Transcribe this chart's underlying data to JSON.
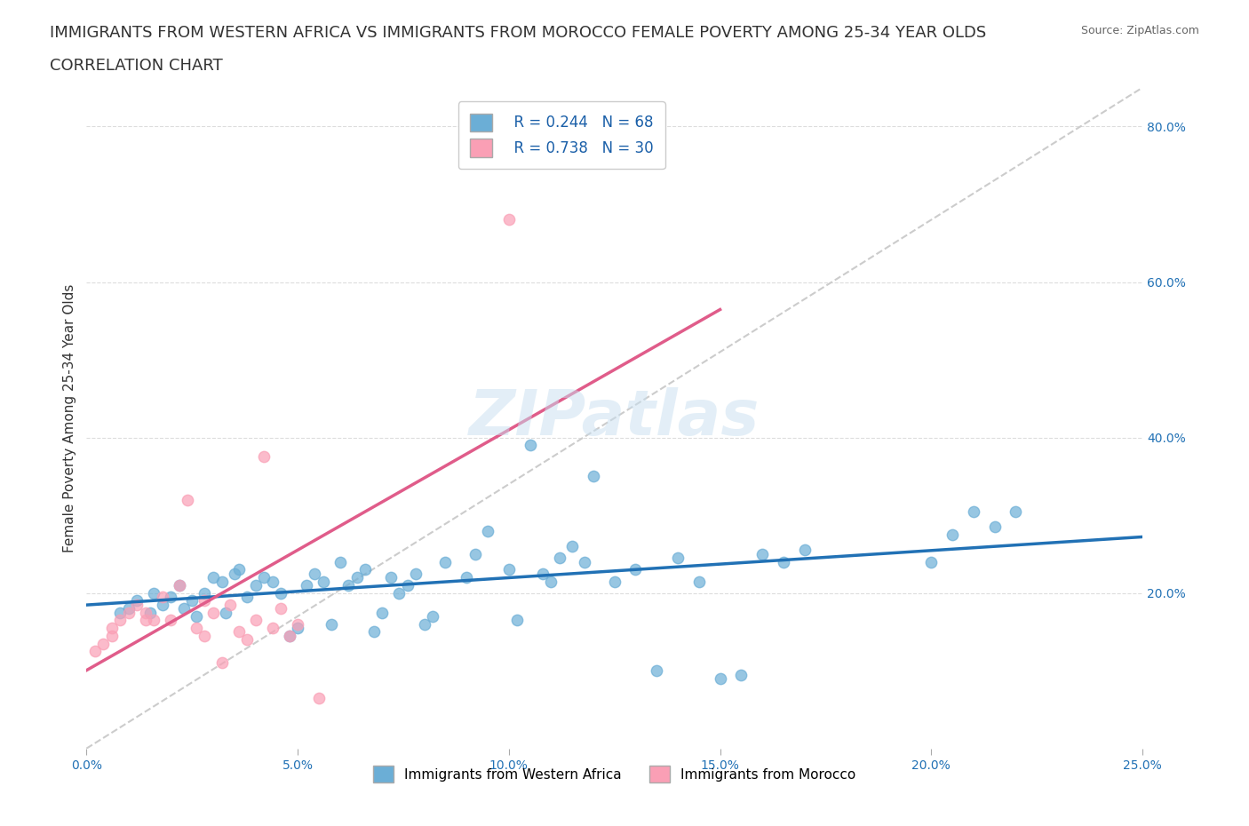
{
  "title_line1": "IMMIGRANTS FROM WESTERN AFRICA VS IMMIGRANTS FROM MOROCCO FEMALE POVERTY AMONG 25-34 YEAR OLDS",
  "title_line2": "CORRELATION CHART",
  "source_text": "Source: ZipAtlas.com",
  "xlabel": "",
  "ylabel": "Female Poverty Among 25-34 Year Olds",
  "xlim": [
    0.0,
    0.25
  ],
  "ylim": [
    0.0,
    0.85
  ],
  "xtick_labels": [
    "0.0%",
    "5.0%",
    "10.0%",
    "15.0%",
    "20.0%",
    "25.0%"
  ],
  "xtick_values": [
    0.0,
    0.05,
    0.1,
    0.15,
    0.2,
    0.25
  ],
  "ytick_labels": [
    "20.0%",
    "40.0%",
    "60.0%",
    "80.0%"
  ],
  "ytick_values": [
    0.2,
    0.4,
    0.6,
    0.8
  ],
  "blue_color": "#6baed6",
  "pink_color": "#fa9fb5",
  "blue_line_color": "#2171b5",
  "pink_line_color": "#e05c8a",
  "diagonal_color": "#cccccc",
  "watermark": "ZIPatlas",
  "legend_r1": "R = 0.244",
  "legend_n1": "N = 68",
  "legend_r2": "R = 0.738",
  "legend_n2": "N = 30",
  "legend_label1": "Immigrants from Western Africa",
  "legend_label2": "Immigrants from Morocco",
  "title_fontsize": 13,
  "axis_label_fontsize": 11,
  "tick_fontsize": 10,
  "blue_scatter": [
    [
      0.008,
      0.175
    ],
    [
      0.01,
      0.18
    ],
    [
      0.012,
      0.19
    ],
    [
      0.015,
      0.175
    ],
    [
      0.016,
      0.2
    ],
    [
      0.018,
      0.185
    ],
    [
      0.02,
      0.195
    ],
    [
      0.022,
      0.21
    ],
    [
      0.023,
      0.18
    ],
    [
      0.025,
      0.19
    ],
    [
      0.026,
      0.17
    ],
    [
      0.028,
      0.2
    ],
    [
      0.03,
      0.22
    ],
    [
      0.032,
      0.215
    ],
    [
      0.033,
      0.175
    ],
    [
      0.035,
      0.225
    ],
    [
      0.036,
      0.23
    ],
    [
      0.038,
      0.195
    ],
    [
      0.04,
      0.21
    ],
    [
      0.042,
      0.22
    ],
    [
      0.044,
      0.215
    ],
    [
      0.046,
      0.2
    ],
    [
      0.048,
      0.145
    ],
    [
      0.05,
      0.155
    ],
    [
      0.052,
      0.21
    ],
    [
      0.054,
      0.225
    ],
    [
      0.056,
      0.215
    ],
    [
      0.058,
      0.16
    ],
    [
      0.06,
      0.24
    ],
    [
      0.062,
      0.21
    ],
    [
      0.064,
      0.22
    ],
    [
      0.066,
      0.23
    ],
    [
      0.068,
      0.15
    ],
    [
      0.07,
      0.175
    ],
    [
      0.072,
      0.22
    ],
    [
      0.074,
      0.2
    ],
    [
      0.076,
      0.21
    ],
    [
      0.078,
      0.225
    ],
    [
      0.08,
      0.16
    ],
    [
      0.082,
      0.17
    ],
    [
      0.085,
      0.24
    ],
    [
      0.09,
      0.22
    ],
    [
      0.092,
      0.25
    ],
    [
      0.095,
      0.28
    ],
    [
      0.1,
      0.23
    ],
    [
      0.102,
      0.165
    ],
    [
      0.105,
      0.39
    ],
    [
      0.108,
      0.225
    ],
    [
      0.11,
      0.215
    ],
    [
      0.112,
      0.245
    ],
    [
      0.115,
      0.26
    ],
    [
      0.118,
      0.24
    ],
    [
      0.12,
      0.35
    ],
    [
      0.125,
      0.215
    ],
    [
      0.13,
      0.23
    ],
    [
      0.135,
      0.1
    ],
    [
      0.14,
      0.245
    ],
    [
      0.145,
      0.215
    ],
    [
      0.15,
      0.09
    ],
    [
      0.155,
      0.095
    ],
    [
      0.16,
      0.25
    ],
    [
      0.165,
      0.24
    ],
    [
      0.17,
      0.255
    ],
    [
      0.2,
      0.24
    ],
    [
      0.205,
      0.275
    ],
    [
      0.21,
      0.305
    ],
    [
      0.215,
      0.285
    ],
    [
      0.22,
      0.305
    ]
  ],
  "pink_scatter": [
    [
      0.002,
      0.125
    ],
    [
      0.004,
      0.135
    ],
    [
      0.006,
      0.155
    ],
    [
      0.008,
      0.165
    ],
    [
      0.01,
      0.175
    ],
    [
      0.012,
      0.185
    ],
    [
      0.014,
      0.175
    ],
    [
      0.016,
      0.165
    ],
    [
      0.018,
      0.195
    ],
    [
      0.02,
      0.165
    ],
    [
      0.022,
      0.21
    ],
    [
      0.024,
      0.32
    ],
    [
      0.026,
      0.155
    ],
    [
      0.028,
      0.145
    ],
    [
      0.03,
      0.175
    ],
    [
      0.032,
      0.11
    ],
    [
      0.034,
      0.185
    ],
    [
      0.036,
      0.15
    ],
    [
      0.038,
      0.14
    ],
    [
      0.04,
      0.165
    ],
    [
      0.042,
      0.375
    ],
    [
      0.044,
      0.155
    ],
    [
      0.046,
      0.18
    ],
    [
      0.048,
      0.145
    ],
    [
      0.05,
      0.16
    ],
    [
      0.055,
      0.065
    ],
    [
      0.1,
      0.68
    ],
    [
      0.028,
      0.19
    ],
    [
      0.006,
      0.145
    ],
    [
      0.014,
      0.165
    ]
  ]
}
